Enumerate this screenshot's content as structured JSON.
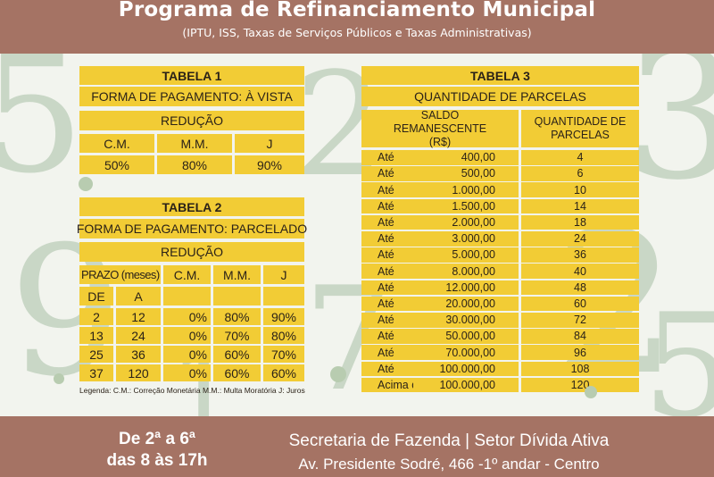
{
  "header": {
    "title": "Programa de Refinanciamento Municipal",
    "subtitle": "(IPTU, ISS, Taxas de Serviços Públicos e Taxas Administrativas)"
  },
  "table1": {
    "title": "TABELA 1",
    "payment": "FORMA DE PAGAMENTO: À VISTA",
    "reduction": "REDUÇÃO",
    "columns": [
      "C.M.",
      "M.M.",
      "J"
    ],
    "values": [
      "50%",
      "80%",
      "90%"
    ]
  },
  "table2": {
    "title": "TABELA 2",
    "payment": "FORMA DE PAGAMENTO: PARCELADO",
    "reduction": "REDUÇÃO",
    "columns": [
      "PRAZO (meses)",
      "C.M.",
      "M.M.",
      "J"
    ],
    "subcolumns": [
      "DE",
      "A"
    ],
    "rows": [
      [
        "2",
        "12",
        "0%",
        "80%",
        "90%"
      ],
      [
        "13",
        "24",
        "0%",
        "70%",
        "80%"
      ],
      [
        "25",
        "36",
        "0%",
        "60%",
        "70%"
      ],
      [
        "37",
        "120",
        "0%",
        "60%",
        "60%"
      ]
    ],
    "legend": "Legenda: C.M.: Correção Monetária    M.M.: Multa Moratória    J: Juros"
  },
  "table3": {
    "title": "TABELA 3",
    "subtitle": "QUANTIDADE DE PARCELAS",
    "col1": "SALDO REMANESCENTE (R$)",
    "col2": "QUANTIDADE DE PARCELAS",
    "rows": [
      [
        "Até",
        "400,00",
        "4"
      ],
      [
        "Até",
        "500,00",
        "6"
      ],
      [
        "Até",
        "1.000,00",
        "10"
      ],
      [
        "Até",
        "1.500,00",
        "14"
      ],
      [
        "Até",
        "2.000,00",
        "18"
      ],
      [
        "Até",
        "3.000,00",
        "24"
      ],
      [
        "Até",
        "5.000,00",
        "36"
      ],
      [
        "Até",
        "8.000,00",
        "40"
      ],
      [
        "Até",
        "12.000,00",
        "48"
      ],
      [
        "Até",
        "20.000,00",
        "60"
      ],
      [
        "Até",
        "30.000,00",
        "72"
      ],
      [
        "Até",
        "50.000,00",
        "84"
      ],
      [
        "Até",
        "70.000,00",
        "96"
      ],
      [
        "Até",
        "100.000,00",
        "108"
      ],
      [
        "Acima de",
        "100.000,00",
        "120"
      ]
    ]
  },
  "footer": {
    "days": "De 2ª a 6ª",
    "hours": "das 8 às 17h",
    "office": "Secretaria de Fazenda | Setor Dívida Ativa",
    "address": "Av. Presidente Sodré, 466 -1º andar - Centro"
  }
}
